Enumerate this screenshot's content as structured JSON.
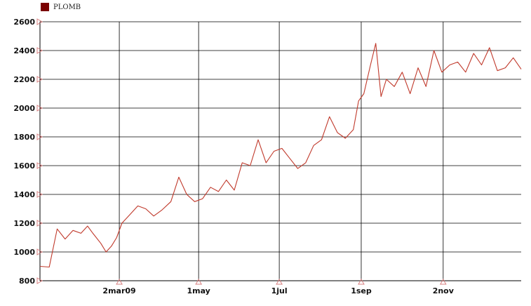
{
  "chart_data": {
    "type": "line",
    "title": "",
    "xlabel": "",
    "ylabel": "",
    "ylim": [
      800,
      2600
    ],
    "yticks": [
      800,
      1000,
      1200,
      1400,
      1600,
      1800,
      2000,
      2200,
      2400,
      2600
    ],
    "xtick_labels": [
      "2mar09",
      "1may",
      "1jul",
      "1sep",
      "2nov"
    ],
    "xtick_dates": [
      "2009-03-02",
      "2009-05-01",
      "2009-07-01",
      "2009-09-01",
      "2009-11-02"
    ],
    "xlim": [
      "2009-01-01",
      "2009-12-31"
    ],
    "grid": true,
    "legend_position": "top-left",
    "colors": {
      "line": "#c0392b",
      "legend": "#7a0000",
      "grid": "#000000",
      "marker": "#d98080"
    },
    "series": [
      {
        "name": "PLOMB",
        "x": [
          "2009-01-01",
          "2009-01-08",
          "2009-01-14",
          "2009-01-20",
          "2009-01-26",
          "2009-02-01",
          "2009-02-06",
          "2009-02-10",
          "2009-02-16",
          "2009-02-20",
          "2009-02-24",
          "2009-02-28",
          "2009-03-04",
          "2009-03-10",
          "2009-03-16",
          "2009-03-22",
          "2009-03-28",
          "2009-04-03",
          "2009-04-10",
          "2009-04-16",
          "2009-04-22",
          "2009-04-28",
          "2009-05-04",
          "2009-05-10",
          "2009-05-16",
          "2009-05-22",
          "2009-05-28",
          "2009-06-03",
          "2009-06-09",
          "2009-06-15",
          "2009-06-21",
          "2009-06-27",
          "2009-07-03",
          "2009-07-09",
          "2009-07-15",
          "2009-07-21",
          "2009-07-27",
          "2009-08-02",
          "2009-08-08",
          "2009-08-14",
          "2009-08-20",
          "2009-08-26",
          "2009-08-30",
          "2009-09-03",
          "2009-09-08",
          "2009-09-12",
          "2009-09-16",
          "2009-09-20",
          "2009-09-26",
          "2009-10-02",
          "2009-10-08",
          "2009-10-14",
          "2009-10-20",
          "2009-10-26",
          "2009-11-01",
          "2009-11-07",
          "2009-11-13",
          "2009-11-19",
          "2009-11-25",
          "2009-12-01",
          "2009-12-07",
          "2009-12-13",
          "2009-12-19",
          "2009-12-25",
          "2009-12-31"
        ],
        "values": [
          900,
          895,
          1160,
          1090,
          1150,
          1130,
          1180,
          1130,
          1060,
          1000,
          1040,
          1100,
          1200,
          1260,
          1320,
          1300,
          1250,
          1290,
          1350,
          1520,
          1400,
          1350,
          1370,
          1450,
          1420,
          1500,
          1430,
          1620,
          1600,
          1780,
          1620,
          1700,
          1720,
          1650,
          1580,
          1620,
          1740,
          1780,
          1940,
          1830,
          1790,
          1850,
          2050,
          2100,
          2300,
          2450,
          2080,
          2200,
          2150,
          2250,
          2100,
          2280,
          2150,
          2400,
          2250,
          2300,
          2320,
          2250,
          2380,
          2300,
          2420,
          2260,
          2280,
          2350,
          2270
        ]
      }
    ]
  }
}
